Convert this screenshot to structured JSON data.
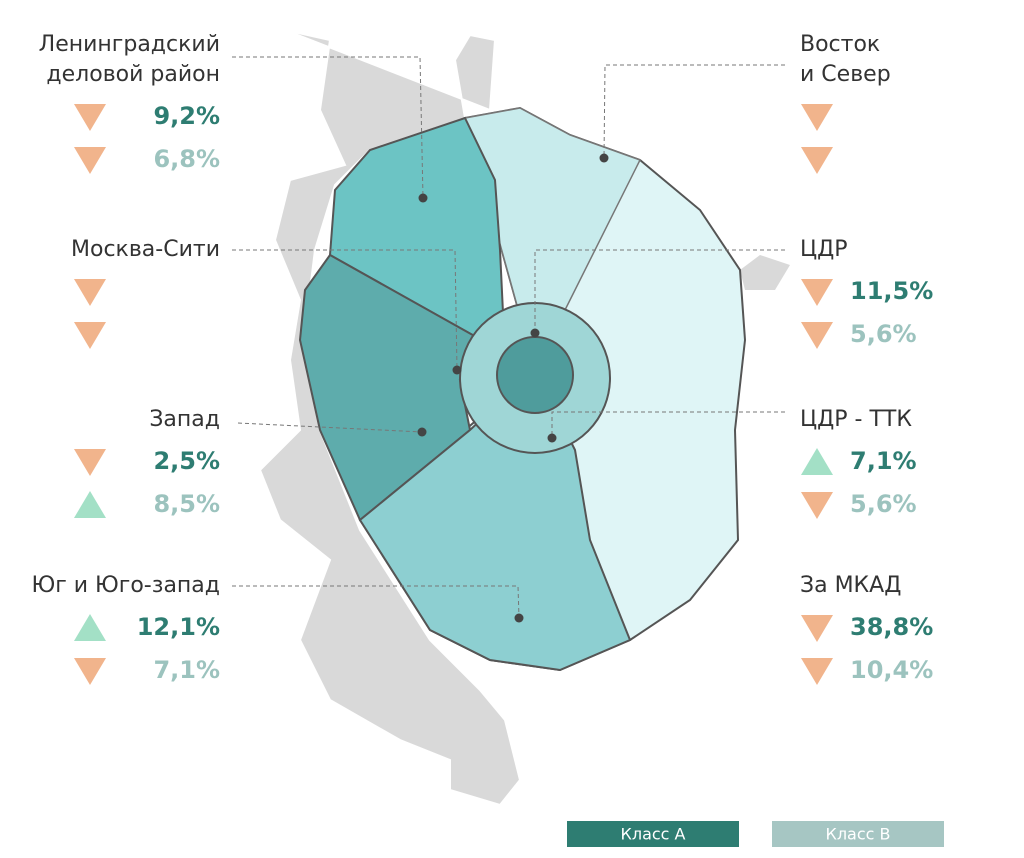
{
  "regions": [
    {
      "name": [
        "Ленинградский",
        "деловой район"
      ],
      "side": "left",
      "class_a": {
        "trend": "down",
        "value": "9,2%"
      },
      "class_b": {
        "trend": "down",
        "value": "6,8%"
      }
    },
    {
      "name": [
        "Москва-Сити"
      ],
      "side": "left",
      "class_a": {
        "trend": "down"
      },
      "class_b": {
        "trend": "down"
      }
    },
    {
      "name": [
        "Запад"
      ],
      "side": "left",
      "class_a": {
        "trend": "down",
        "value": "2,5%"
      },
      "class_b": {
        "trend": "up",
        "value": "8,5%"
      }
    },
    {
      "name": [
        "Юг и Юго-запад"
      ],
      "side": "left",
      "class_a": {
        "trend": "up",
        "value": "12,1%"
      },
      "class_b": {
        "trend": "down",
        "value": "7,1%"
      }
    },
    {
      "name": [
        "Восток",
        "и Север"
      ],
      "side": "right",
      "class_a": {
        "trend": "down"
      },
      "class_b": {
        "trend": "down"
      }
    },
    {
      "name": [
        "ЦДР"
      ],
      "side": "right",
      "class_a": {
        "trend": "down",
        "value": "11,5%"
      },
      "class_b": {
        "trend": "down",
        "value": "5,6%"
      }
    },
    {
      "name": [
        "ЦДР - ТТК"
      ],
      "side": "right",
      "class_a": {
        "trend": "up",
        "value": "7,1%"
      },
      "class_b": {
        "trend": "down",
        "value": "5,6%"
      }
    },
    {
      "name": [
        "За МКАД"
      ],
      "side": "right",
      "class_a": {
        "trend": "down",
        "value": "38,8%"
      },
      "class_b": {
        "trend": "down",
        "value": "10,4%"
      }
    }
  ],
  "legend": {
    "class_a": "Класс А",
    "class_b": "Класс В"
  }
}
